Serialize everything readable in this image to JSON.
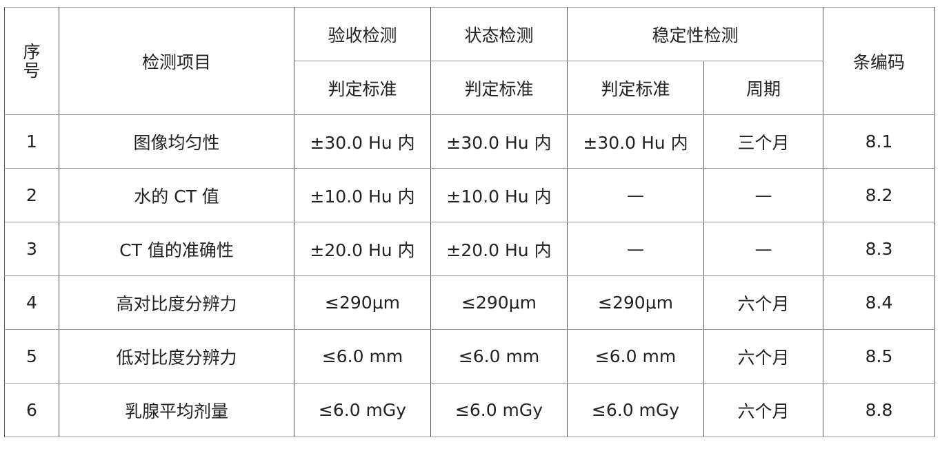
{
  "header": {
    "seq": "序号",
    "item": "检测项目",
    "acceptance": "验收检测",
    "status": "状态检测",
    "stability": "稳定性检测",
    "clause": "条编码",
    "criterion_acceptance": "判定标准",
    "criterion_status": "判定标准",
    "criterion_stability": "判定标准",
    "period": "周期"
  },
  "rows": [
    {
      "seq": "1",
      "item": "图像均匀性",
      "acceptance": "±30.0 Hu 内",
      "status": "±30.0 Hu 内",
      "stability": "±30.0 Hu 内",
      "period": "三个月",
      "clause": "8.1"
    },
    {
      "seq": "2",
      "item": "水的 CT 值",
      "acceptance": "±10.0 Hu 内",
      "status": "±10.0 Hu 内",
      "stability": "—",
      "period": "—",
      "clause": "8.2"
    },
    {
      "seq": "3",
      "item": "CT 值的准确性",
      "acceptance": "±20.0 Hu 内",
      "status": "±20.0 Hu 内",
      "stability": "—",
      "period": "—",
      "clause": "8.3"
    },
    {
      "seq": "4",
      "item": "高对比度分辨力",
      "acceptance": "≤290μm",
      "status": "≤290μm",
      "stability": "≤290μm",
      "period": "六个月",
      "clause": "8.4"
    },
    {
      "seq": "5",
      "item": "低对比度分辨力",
      "acceptance": "≤6.0 mm",
      "status": "≤6.0 mm",
      "stability": "≤6.0 mm",
      "period": "六个月",
      "clause": "8.5"
    },
    {
      "seq": "6",
      "item": "乳腺平均剂量",
      "acceptance": "≤6.0 mGy",
      "status": "≤6.0 mGy",
      "stability": "≤6.0 mGy",
      "period": "六个月",
      "clause": "8.8"
    }
  ]
}
